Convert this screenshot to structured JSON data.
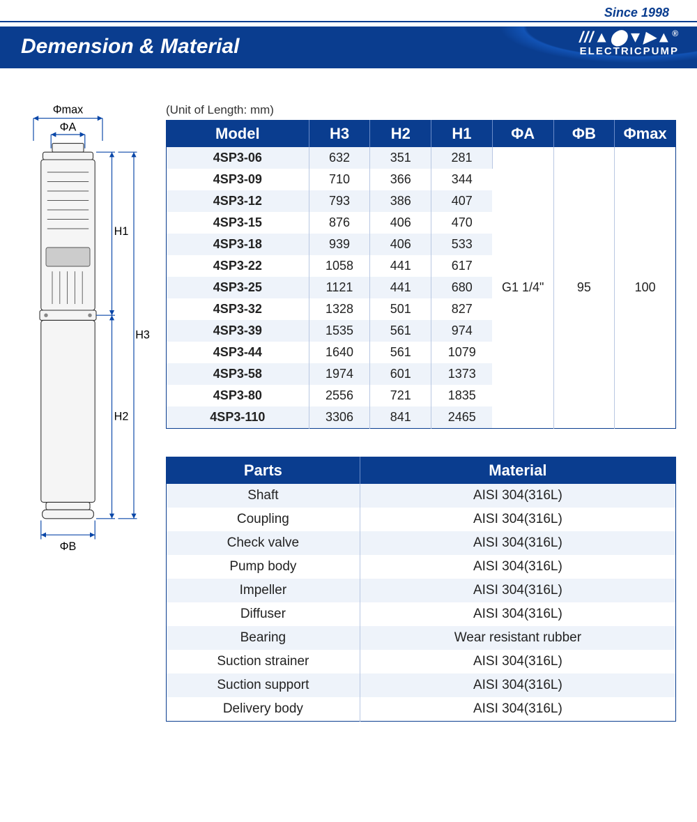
{
  "header": {
    "since": "Since 1998",
    "title": "Demension & Material",
    "brand_logo": "///▲⬤▼▶▲",
    "brand_sub": "ELECTRICPUMP"
  },
  "diagram": {
    "phi_max": "Φmax",
    "phi_a": "ΦA",
    "phi_b": "ΦB",
    "h1": "H1",
    "h2": "H2",
    "h3": "H3"
  },
  "unit_note": "(Unit of Length: mm)",
  "dim_table": {
    "headers": [
      "Model",
      "H3",
      "H2",
      "H1",
      "ΦA",
      "ΦB",
      "Φmax"
    ],
    "rows": [
      [
        "4SP3-06",
        "632",
        "351",
        "281"
      ],
      [
        "4SP3-09",
        "710",
        "366",
        "344"
      ],
      [
        "4SP3-12",
        "793",
        "386",
        "407"
      ],
      [
        "4SP3-15",
        "876",
        "406",
        "470"
      ],
      [
        "4SP3-18",
        "939",
        "406",
        "533"
      ],
      [
        "4SP3-22",
        "1058",
        "441",
        "617"
      ],
      [
        "4SP3-25",
        "1121",
        "441",
        "680"
      ],
      [
        "4SP3-32",
        "1328",
        "501",
        "827"
      ],
      [
        "4SP3-39",
        "1535",
        "561",
        "974"
      ],
      [
        "4SP3-44",
        "1640",
        "561",
        "1079"
      ],
      [
        "4SP3-58",
        "1974",
        "601",
        "1373"
      ],
      [
        "4SP3-80",
        "2556",
        "721",
        "1835"
      ],
      [
        "4SP3-110",
        "3306",
        "841",
        "2465"
      ]
    ],
    "merged": {
      "phi_a": "G1 1/4\"",
      "phi_b": "95",
      "phi_max": "100"
    }
  },
  "mat_table": {
    "headers": [
      "Parts",
      "Material"
    ],
    "rows": [
      [
        "Shaft",
        "AISI 304(316L)"
      ],
      [
        "Coupling",
        "AISI 304(316L)"
      ],
      [
        "Check valve",
        "AISI 304(316L)"
      ],
      [
        "Pump body",
        "AISI 304(316L)"
      ],
      [
        "Impeller",
        "AISI 304(316L)"
      ],
      [
        "Diffuser",
        "AISI 304(316L)"
      ],
      [
        "Bearing",
        "Wear resistant rubber"
      ],
      [
        "Suction strainer",
        "AISI 304(316L)"
      ],
      [
        "Suction support",
        "AISI 304(316L)"
      ],
      [
        "Delivery body",
        "AISI 304(316L)"
      ]
    ]
  }
}
